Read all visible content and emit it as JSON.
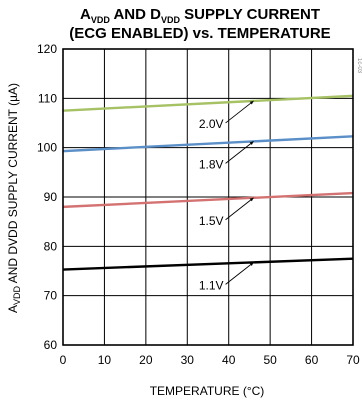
{
  "chart_data": {
    "type": "line",
    "title_line1": {
      "p1": "A",
      "s1": "VDD",
      "p2": " AND D",
      "s2": "VDD",
      "p3": " SUPPLY CURRENT"
    },
    "title_line2": "(ECG ENABLED) vs. TEMPERATURE",
    "xlabel": "TEMPERATURE (°C)",
    "ylabel": {
      "p1": "A",
      "s1": "VDD",
      "p2": " AND DVDD SUPPLY CURRENT (µA)"
    },
    "side_note": "1c-03",
    "xlim": [
      0,
      70
    ],
    "ylim": [
      60,
      120
    ],
    "xticks": [
      "0",
      "10",
      "20",
      "30",
      "40",
      "50",
      "60",
      "70"
    ],
    "yticks": [
      "60",
      "70",
      "80",
      "90",
      "100",
      "110",
      "120"
    ],
    "grid": true,
    "series": [
      {
        "name": "2.0V",
        "color": "#a6c264",
        "x": [
          0,
          70
        ],
        "y": [
          107.5,
          110.5
        ]
      },
      {
        "name": "1.8V",
        "color": "#5b8fc7",
        "x": [
          0,
          70
        ],
        "y": [
          99.3,
          102.3
        ]
      },
      {
        "name": "1.5V",
        "color": "#d47272",
        "x": [
          0,
          70
        ],
        "y": [
          88.0,
          90.8
        ]
      },
      {
        "name": "1.1V",
        "color": "#000000",
        "x": [
          0,
          70
        ],
        "y": [
          75.3,
          77.5
        ]
      }
    ]
  }
}
